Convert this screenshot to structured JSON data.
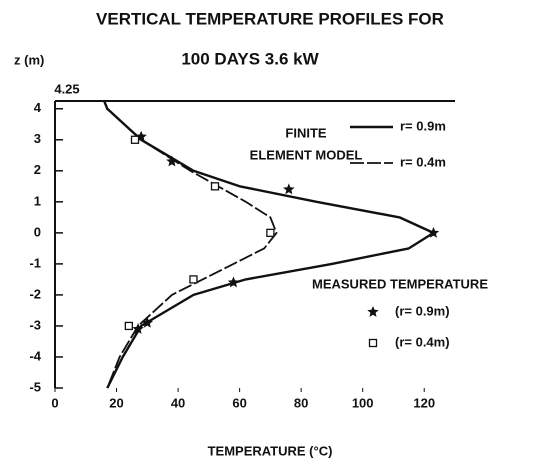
{
  "chart_data": {
    "type": "line",
    "title": "VERTICAL TEMPERATURE PROFILES FOR",
    "subtitle": "100 DAYS 3.6 kW",
    "y_label": "z (m)",
    "x_label": "TEMPERATURE (°C)",
    "annotations": [
      "FINITE",
      "ELEMENT MODEL",
      "MEASURED TEMPERATURE"
    ],
    "xlim": [
      0,
      130
    ],
    "xticks": [
      0,
      20,
      40,
      60,
      80,
      100,
      120
    ],
    "ylim": [
      -5,
      4.25
    ],
    "yticks": [
      -5,
      -4,
      -3,
      -2,
      -1,
      0,
      1,
      2,
      3,
      4,
      4.25
    ],
    "series": [
      {
        "name": "r= 0.9m",
        "type": "line",
        "color": "#111111",
        "dash": false,
        "x": [
          16,
          17,
          28,
          45,
          60,
          85,
          112,
          123,
          115,
          90,
          62,
          45,
          28,
          22,
          17
        ],
        "values": [
          4.25,
          4,
          3,
          2,
          1.5,
          1,
          0.5,
          0,
          -0.5,
          -1,
          -1.5,
          -2,
          -3,
          -4,
          -5
        ]
      },
      {
        "name": "r= 0.4m",
        "type": "line",
        "color": "#111111",
        "dash": true,
        "x": [
          16,
          17,
          28,
          44,
          62,
          70,
          72,
          68,
          58,
          38,
          27,
          21,
          17
        ],
        "values": [
          4.25,
          4,
          3,
          2,
          1,
          0.5,
          0,
          -0.5,
          -1,
          -2,
          -3,
          -4,
          -5
        ]
      },
      {
        "name": "(r= 0.9m)",
        "type": "scatter",
        "marker": "star",
        "color": "#111111",
        "x": [
          28,
          38,
          76,
          123,
          58,
          30,
          27
        ],
        "values": [
          3.1,
          2.3,
          1.4,
          0,
          -1.6,
          -2.9,
          -3.1
        ]
      },
      {
        "name": "(r= 0.4m)",
        "type": "scatter",
        "marker": "square",
        "color": "#111111",
        "x": [
          26,
          52,
          70,
          45,
          24
        ],
        "values": [
          3,
          1.5,
          0,
          -1.5,
          -3
        ]
      }
    ]
  }
}
